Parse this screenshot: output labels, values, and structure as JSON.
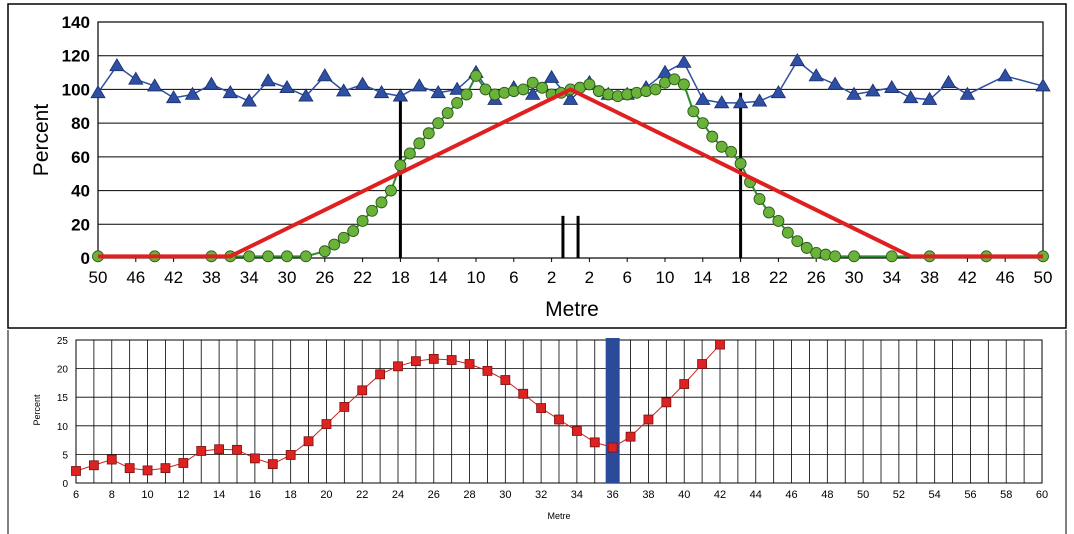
{
  "chart_data": [
    {
      "type": "line",
      "title": "",
      "xlabel": "Metre",
      "ylabel": "Percent",
      "ylim": [
        0,
        140
      ],
      "y_ticks": [
        "0",
        "20",
        "40",
        "60",
        "80",
        "100",
        "120",
        "140"
      ],
      "x_ticks": [
        "50",
        "46",
        "42",
        "38",
        "34",
        "30",
        "26",
        "22",
        "18",
        "14",
        "10",
        "6",
        "2",
        "2",
        "6",
        "10",
        "14",
        "18",
        "22",
        "26",
        "30",
        "34",
        "38",
        "42",
        "46",
        "50"
      ],
      "x_range": [
        -50,
        50
      ],
      "grid": "horizontal",
      "colors": {
        "triangles": "#2e4fa3",
        "circles": "#6ab33b",
        "circle_line": "#2e8b2e",
        "red": "#e02020",
        "vlines": "#000000"
      },
      "series": [
        {
          "x": [
            -50,
            -48,
            -46,
            -44,
            -42,
            -40,
            -38,
            -36,
            -34,
            -32,
            -30,
            -28,
            -26,
            -24,
            -22,
            -20,
            -18,
            -16,
            -14,
            -12,
            -10,
            -8,
            -6,
            -4,
            -2,
            0,
            2,
            4,
            6,
            8,
            10,
            12,
            14,
            16,
            18,
            20,
            22,
            24,
            26,
            28,
            30,
            32,
            34,
            36,
            38,
            40,
            42,
            46,
            50
          ],
          "values": [
            98,
            114,
            106,
            102,
            95,
            97,
            103,
            98,
            93,
            105,
            101,
            96,
            108,
            99,
            103,
            98,
            96,
            102,
            98,
            100,
            110,
            94,
            101,
            97,
            107,
            94,
            104,
            97,
            97,
            101,
            110,
            116,
            94,
            92,
            92,
            93,
            98,
            117,
            108,
            103,
            97,
            99,
            101,
            95,
            94,
            104,
            97,
            108,
            102
          ]
        },
        {
          "x": [
            -50,
            -44,
            -38,
            -36,
            -34,
            -32,
            -30,
            -28,
            -26,
            -25,
            -24,
            -23,
            -22,
            -21,
            -20,
            -19,
            -18,
            -17,
            -16,
            -15,
            -14,
            -13,
            -12,
            -11,
            -10,
            -9,
            -8,
            -7,
            -6,
            -5,
            -4,
            -3,
            -2,
            -1,
            0,
            1,
            2,
            3,
            4,
            5,
            6,
            7,
            8,
            9,
            10,
            11,
            12,
            13,
            14,
            15,
            16,
            17,
            18,
            19,
            20,
            21,
            22,
            23,
            24,
            25,
            26,
            27,
            28,
            30,
            34,
            38,
            44,
            50
          ],
          "values": [
            1,
            1,
            1,
            1,
            1,
            1,
            1,
            1,
            4,
            8,
            12,
            16,
            22,
            28,
            33,
            40,
            55,
            62,
            68,
            74,
            80,
            86,
            92,
            97,
            108,
            100,
            97,
            98,
            99,
            100,
            104,
            101,
            97,
            98,
            100,
            101,
            103,
            99,
            97,
            96,
            97,
            98,
            99,
            100,
            104,
            106,
            103,
            87,
            80,
            72,
            66,
            63,
            56,
            45,
            35,
            27,
            22,
            15,
            10,
            6,
            3,
            2,
            1,
            1,
            1,
            1,
            1,
            1
          ]
        },
        {
          "x": [
            -50,
            -36,
            0,
            36,
            50
          ],
          "values": [
            1,
            1,
            100,
            1,
            1
          ]
        }
      ],
      "vertical_lines": [
        -18,
        -0.8,
        0.8,
        18
      ]
    },
    {
      "type": "line",
      "title": "",
      "xlabel": "Metre",
      "ylabel": "Percent",
      "ylim": [
        0,
        25
      ],
      "xlim": [
        6,
        60
      ],
      "y_ticks": [
        "0",
        "5",
        "10",
        "15",
        "20",
        "25"
      ],
      "x_ticks": [
        "6",
        "8",
        "10",
        "12",
        "14",
        "16",
        "18",
        "20",
        "22",
        "24",
        "26",
        "28",
        "30",
        "32",
        "34",
        "36",
        "38",
        "40",
        "42",
        "44",
        "46",
        "48",
        "50",
        "52",
        "54",
        "56",
        "58",
        "60"
      ],
      "grid": "both",
      "colors": {
        "marker": "#dd2222",
        "line": "#cc2222",
        "highlight": "#2c4a9a"
      },
      "highlight_x": 36,
      "series": [
        {
          "x": [
            6,
            7,
            8,
            9,
            10,
            11,
            12,
            13,
            14,
            15,
            16,
            17,
            18,
            19,
            20,
            21,
            22,
            23,
            24,
            25,
            26,
            27,
            28,
            29,
            30,
            31,
            32,
            33,
            34,
            35,
            36,
            37,
            38,
            39,
            40,
            41,
            42
          ],
          "values": [
            2.1,
            3.1,
            4.1,
            2.6,
            2.2,
            2.6,
            3.5,
            5.6,
            5.9,
            5.8,
            4.3,
            3.3,
            4.9,
            7.3,
            10.3,
            13.3,
            16.2,
            19.0,
            20.4,
            21.3,
            21.7,
            21.5,
            20.8,
            19.6,
            18.0,
            15.6,
            13.1,
            11.1,
            9.1,
            7.1,
            6.2,
            8.1,
            11.1,
            14.1,
            17.3,
            20.8,
            24.2
          ]
        }
      ]
    }
  ]
}
